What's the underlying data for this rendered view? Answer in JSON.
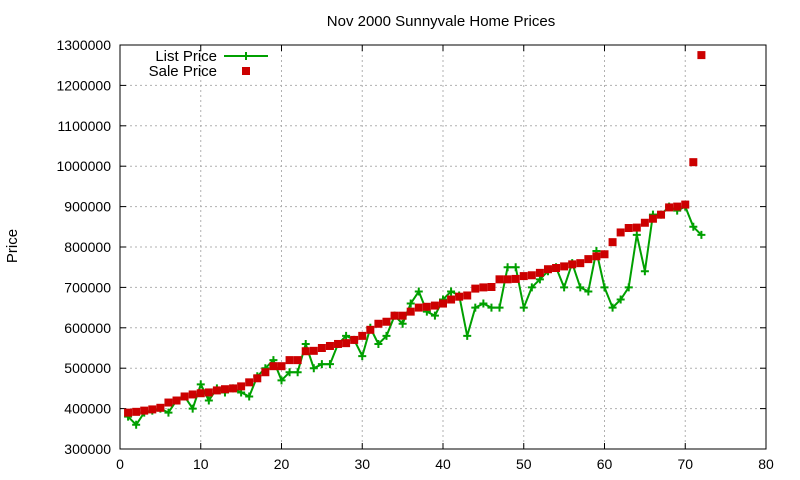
{
  "chart_data": {
    "type": "scatter",
    "title": "Nov 2000 Sunnyvale Home Prices",
    "ylabel": "Price",
    "xlabel": "",
    "xlim": [
      0,
      80
    ],
    "ylim": [
      300000,
      1300000
    ],
    "xticks": [
      0,
      10,
      20,
      30,
      40,
      50,
      60,
      70,
      80
    ],
    "yticks": [
      300000,
      400000,
      500000,
      600000,
      700000,
      800000,
      900000,
      1000000,
      1100000,
      1200000,
      1300000
    ],
    "grid": true,
    "legend": "top-left",
    "series": [
      {
        "name": "List Price",
        "style": "linespoints",
        "marker": "plus",
        "color": "#00a000",
        "x": [
          1,
          2,
          3,
          4,
          5,
          6,
          7,
          8,
          9,
          10,
          11,
          12,
          13,
          14,
          15,
          16,
          17,
          18,
          19,
          20,
          21,
          22,
          23,
          24,
          25,
          26,
          27,
          28,
          29,
          30,
          31,
          32,
          33,
          34,
          35,
          36,
          37,
          38,
          39,
          40,
          41,
          42,
          43,
          44,
          45,
          46,
          47,
          48,
          49,
          50,
          51,
          52,
          53,
          54,
          55,
          56,
          57,
          58,
          59,
          60,
          61,
          62,
          63,
          64,
          65,
          66,
          67,
          68,
          69,
          70,
          71,
          72
        ],
        "y": [
          380000,
          360000,
          390000,
          395000,
          400000,
          390000,
          420000,
          430000,
          400000,
          460000,
          420000,
          450000,
          440000,
          450000,
          440000,
          430000,
          480000,
          500000,
          520000,
          470000,
          490000,
          490000,
          560000,
          500000,
          510000,
          510000,
          560000,
          580000,
          570000,
          530000,
          600000,
          560000,
          580000,
          630000,
          610000,
          660000,
          690000,
          640000,
          630000,
          670000,
          690000,
          680000,
          580000,
          650000,
          660000,
          650000,
          650000,
          750000,
          750000,
          650000,
          700000,
          720000,
          740000,
          750000,
          700000,
          760000,
          700000,
          690000,
          790000,
          700000,
          650000,
          670000,
          700000,
          830000,
          740000,
          880000,
          880000,
          900000,
          890000,
          900000,
          850000,
          830000
        ]
      },
      {
        "name": "Sale Price",
        "style": "points",
        "marker": "square",
        "color": "#cc0000",
        "x": [
          1,
          2,
          3,
          4,
          5,
          6,
          7,
          8,
          9,
          10,
          11,
          12,
          13,
          14,
          15,
          16,
          17,
          18,
          19,
          20,
          21,
          22,
          23,
          24,
          25,
          26,
          27,
          28,
          29,
          30,
          31,
          32,
          33,
          34,
          35,
          36,
          37,
          38,
          39,
          40,
          41,
          42,
          43,
          44,
          45,
          46,
          47,
          48,
          49,
          50,
          51,
          52,
          53,
          54,
          55,
          56,
          57,
          58,
          59,
          60,
          61,
          62,
          63,
          64,
          65,
          66,
          67,
          68,
          69,
          70,
          71,
          72
        ],
        "y": [
          390000,
          392000,
          395000,
          398000,
          402000,
          415000,
          420000,
          430000,
          435000,
          438000,
          440000,
          445000,
          448000,
          450000,
          455000,
          465000,
          475000,
          490000,
          505000,
          505000,
          520000,
          520000,
          542000,
          543000,
          550000,
          555000,
          560000,
          562000,
          570000,
          580000,
          595000,
          610000,
          615000,
          630000,
          630000,
          640000,
          650000,
          652000,
          655000,
          660000,
          670000,
          677000,
          680000,
          697000,
          700000,
          701000,
          720000,
          720000,
          721000,
          728000,
          730000,
          736000,
          745000,
          748000,
          752000,
          757000,
          760000,
          770000,
          777000,
          782000,
          812000,
          836000,
          847000,
          848000,
          860000,
          870000,
          880000,
          898000,
          900000,
          905000,
          1010000,
          1275000
        ]
      }
    ]
  }
}
